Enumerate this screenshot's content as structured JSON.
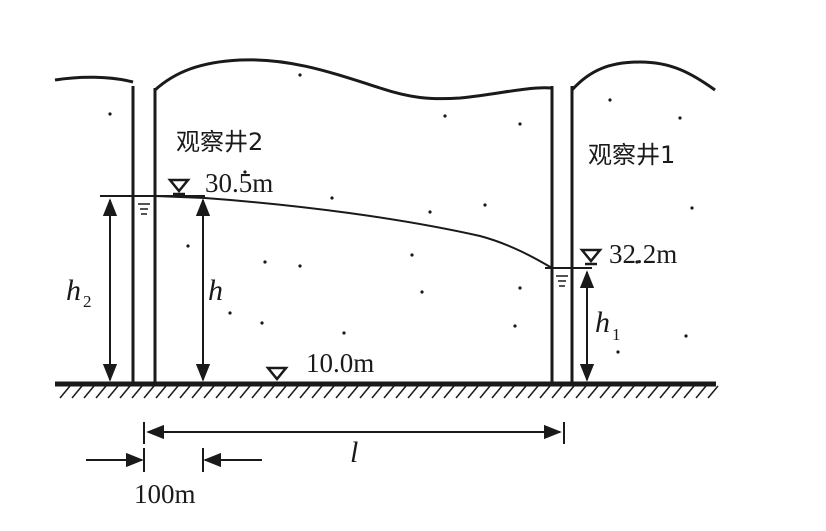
{
  "wells": {
    "well2": {
      "label": "观察井2",
      "water_level": "30.5m",
      "height_symbol": "h",
      "height_subscript": "2"
    },
    "well1": {
      "label": "观察井1",
      "water_level": "32.2m",
      "height_symbol": "h",
      "height_subscript": "1"
    }
  },
  "section_height_symbol": "h",
  "base_level": "10.0m",
  "distance_symbol": "l",
  "well_width": "100m"
}
